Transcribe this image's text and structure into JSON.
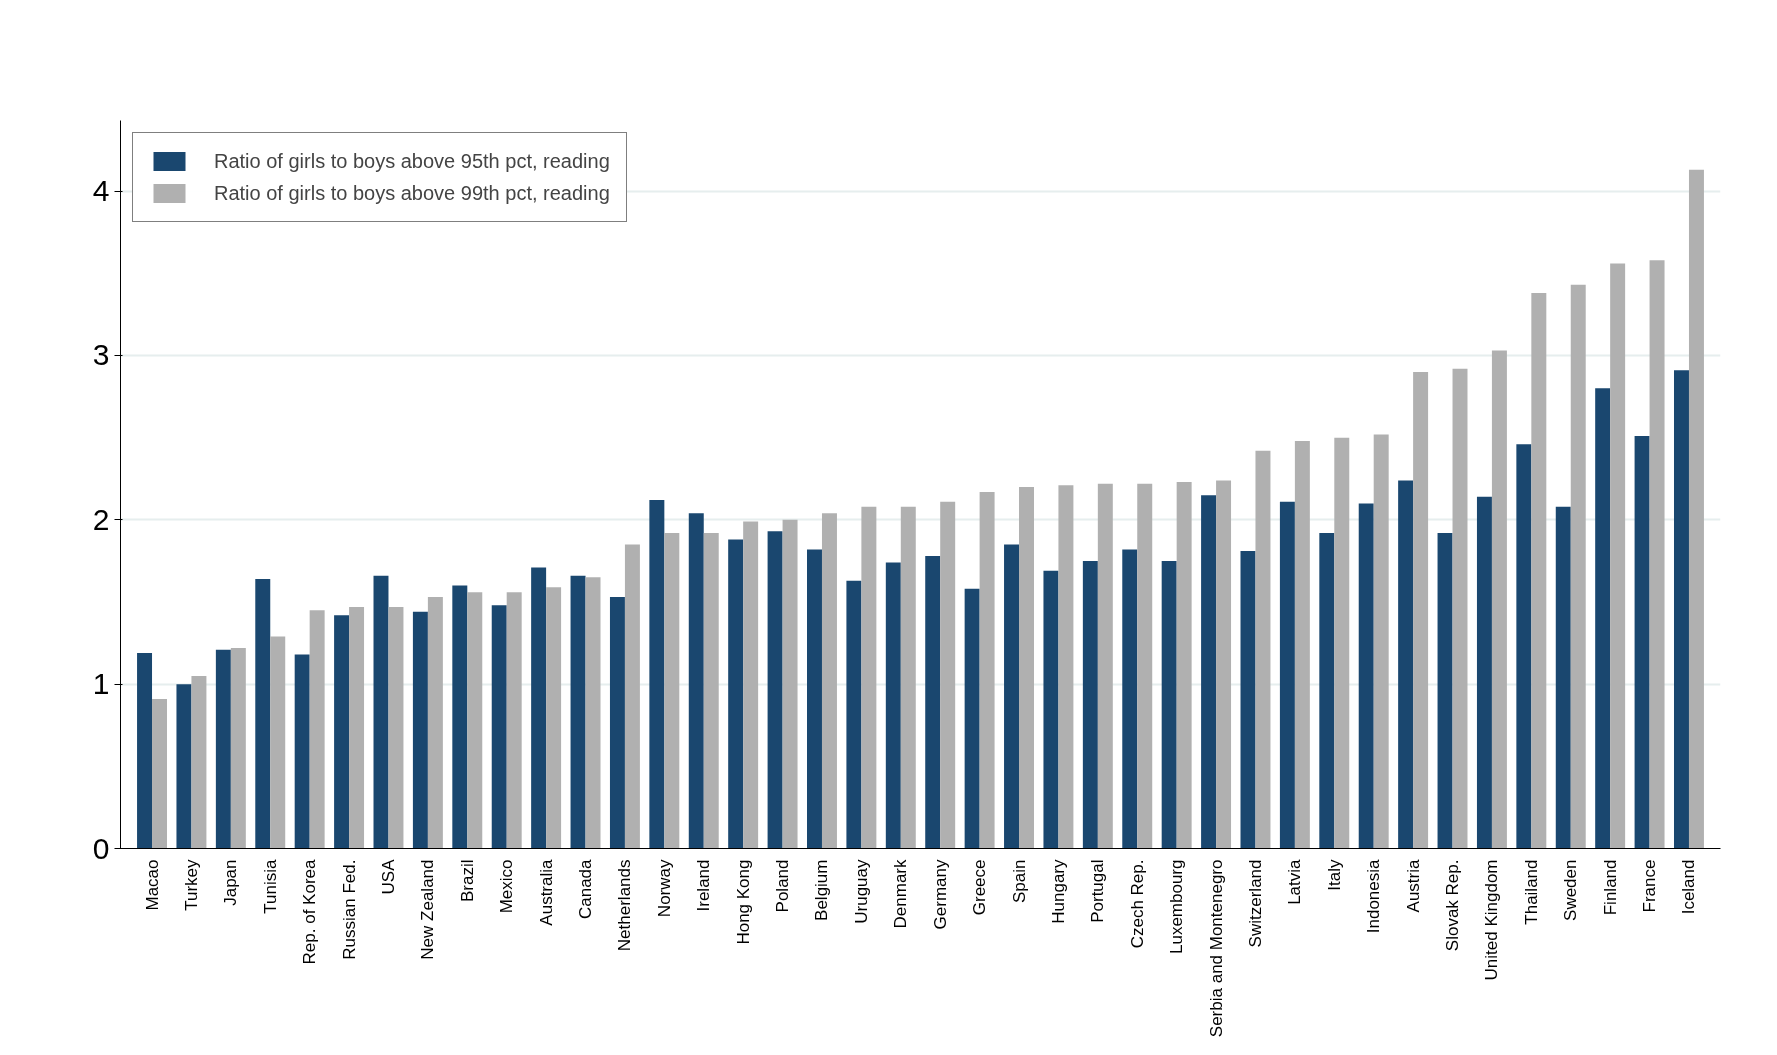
{
  "chart_data": {
    "type": "bar",
    "categories": [
      "Macao",
      "Turkey",
      "Japan",
      "Tunisia",
      "Rep. of Korea",
      "Russian Fed.",
      "USA",
      "New Zealand",
      "Brazil",
      "Mexico",
      "Australia",
      "Canada",
      "Netherlands",
      "Norway",
      "Ireland",
      "Hong Kong",
      "Poland",
      "Belgium",
      "Uruguay",
      "Denmark",
      "Germany",
      "Greece",
      "Spain",
      "Hungary",
      "Portugal",
      "Czech Rep.",
      "Luxembourg",
      "Serbia and Montenegro",
      "Switzerland",
      "Latvia",
      "Italy",
      "Indonesia",
      "Austria",
      "Slovak Rep.",
      "United Kingdom",
      "Thailand",
      "Sweden",
      "Finland",
      "France",
      "Iceland"
    ],
    "series": [
      {
        "name": "Ratio of girls to boys above 95th pct, reading",
        "color": "#1a476f",
        "values": [
          1.19,
          1.0,
          1.21,
          1.64,
          1.18,
          1.42,
          1.66,
          1.44,
          1.6,
          1.48,
          1.71,
          1.66,
          1.53,
          2.12,
          2.04,
          1.88,
          1.93,
          1.82,
          1.63,
          1.74,
          1.78,
          1.58,
          1.85,
          1.69,
          1.75,
          1.82,
          1.75,
          2.15,
          1.81,
          2.11,
          1.92,
          2.1,
          2.24,
          1.92,
          2.14,
          2.46,
          2.08,
          2.8,
          2.51,
          2.91
        ]
      },
      {
        "name": "Ratio of girls to boys above 99th pct, reading",
        "color": "#b0b0b0",
        "values": [
          0.91,
          1.05,
          1.22,
          1.29,
          1.45,
          1.47,
          1.47,
          1.53,
          1.56,
          1.56,
          1.59,
          1.65,
          1.85,
          1.92,
          1.92,
          1.99,
          2.0,
          2.04,
          2.08,
          2.08,
          2.11,
          2.17,
          2.2,
          2.21,
          2.22,
          2.22,
          2.23,
          2.24,
          2.42,
          2.48,
          2.5,
          2.52,
          2.9,
          2.92,
          3.03,
          3.38,
          3.43,
          3.56,
          3.58,
          4.13
        ]
      }
    ],
    "ylim": [
      0,
      4.43
    ],
    "yticks": [
      0,
      1,
      2,
      3,
      4
    ],
    "grid": "y",
    "legend": "top left"
  }
}
